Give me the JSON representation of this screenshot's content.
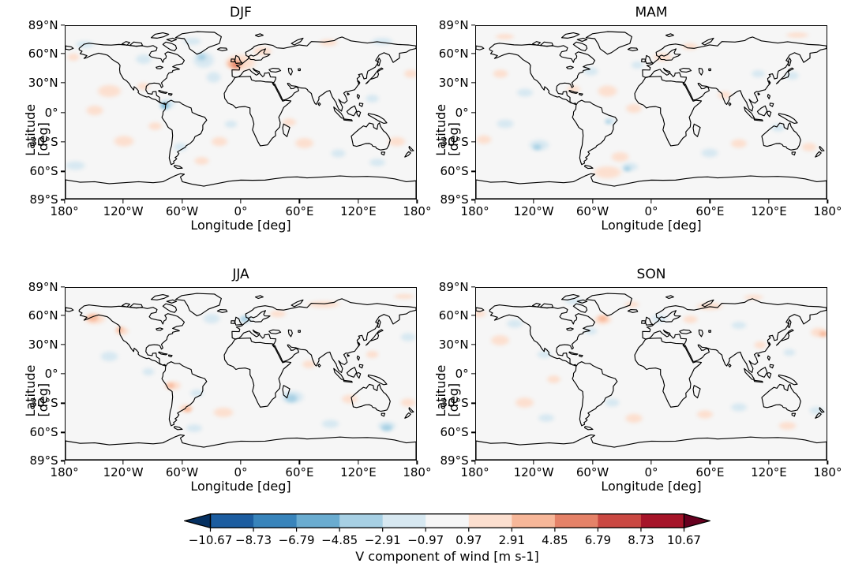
{
  "figure": {
    "background": "#ffffff",
    "ocean_fill": "#f6f6f6",
    "coastline_color": "#000000",
    "blob_colors": {
      "n1": "#d7e8f1",
      "n2": "#a7d0e4",
      "n3": "#6aacd0",
      "p1": "#fcdfcf",
      "p2": "#f7b799",
      "p3": "#e58268"
    },
    "panels": [
      {
        "title": "DJF",
        "xlabel": "Longitude [deg]",
        "ylabel": "Latitude [deg]",
        "xtick_labels": [
          "180°",
          "120°W",
          "60°W",
          "0°",
          "60°E",
          "120°E",
          "180°"
        ],
        "ytick_labels": [
          "89°N",
          "60°N",
          "30°N",
          "0°",
          "30°S",
          "60°S",
          "89°S"
        ],
        "blobs": [
          [
            0,
            52,
            48,
            26,
            "p1"
          ],
          [
            22,
            63,
            30,
            14,
            "p1"
          ],
          [
            -135,
            22,
            38,
            20,
            "p1"
          ],
          [
            -150,
            2,
            28,
            16,
            "p1"
          ],
          [
            -100,
            27,
            20,
            12,
            "p1"
          ],
          [
            -120,
            -30,
            32,
            18,
            "p1"
          ],
          [
            -88,
            -14,
            22,
            13,
            "p1"
          ],
          [
            -22,
            -30,
            26,
            16,
            "p1"
          ],
          [
            -40,
            -50,
            24,
            13,
            "p1"
          ],
          [
            65,
            -32,
            30,
            17,
            "p1"
          ],
          [
            50,
            -10,
            22,
            13,
            "p1"
          ],
          [
            160,
            -30,
            28,
            16,
            "p1"
          ],
          [
            90,
            72,
            30,
            11,
            "p1"
          ],
          [
            175,
            40,
            22,
            14,
            "p1"
          ],
          [
            -172,
            57,
            20,
            12,
            "p1"
          ],
          [
            -38,
            54,
            34,
            26,
            "n1"
          ],
          [
            -28,
            36,
            24,
            18,
            "n1"
          ],
          [
            -50,
            73,
            28,
            12,
            "n1"
          ],
          [
            -75,
            9,
            24,
            16,
            "n1"
          ],
          [
            -100,
            55,
            26,
            16,
            "n1"
          ],
          [
            -160,
            70,
            30,
            12,
            "n1"
          ],
          [
            145,
            73,
            34,
            12,
            "n1"
          ],
          [
            -62,
            -36,
            22,
            14,
            "n1"
          ],
          [
            -170,
            -55,
            32,
            15,
            "n1"
          ],
          [
            100,
            -42,
            24,
            14,
            "n1"
          ],
          [
            140,
            -52,
            26,
            13,
            "n1"
          ],
          [
            135,
            14,
            22,
            13,
            "n1"
          ],
          [
            -10,
            -12,
            20,
            12,
            "n1"
          ],
          [
            -6,
            50,
            26,
            16,
            "p2"
          ],
          [
            -40,
            57,
            14,
            11,
            "n2"
          ],
          [
            -78,
            7,
            16,
            11,
            "n2"
          ],
          [
            -5,
            49,
            12,
            9,
            "p3"
          ],
          [
            -78,
            7,
            9,
            6,
            "n3"
          ]
        ]
      },
      {
        "title": "MAM",
        "xlabel": "Longitude [deg]",
        "ylabel": "Latitude [deg]",
        "xtick_labels": [
          "180°",
          "120°W",
          "60°W",
          "0°",
          "60°E",
          "120°E",
          "180°"
        ],
        "ytick_labels": [
          "89°N",
          "60°N",
          "30°N",
          "0°",
          "30°S",
          "60°S",
          "89°S"
        ],
        "blobs": [
          [
            -45,
            22,
            32,
            18,
            "p1"
          ],
          [
            -18,
            4,
            26,
            15,
            "p1"
          ],
          [
            12,
            57,
            30,
            14,
            "p1"
          ],
          [
            -172,
            -28,
            24,
            14,
            "p1"
          ],
          [
            -80,
            24,
            22,
            12,
            "p1"
          ],
          [
            -155,
            40,
            24,
            14,
            "p1"
          ],
          [
            90,
            -32,
            26,
            15,
            "p1"
          ],
          [
            162,
            -36,
            24,
            14,
            "p1"
          ],
          [
            75,
            18,
            22,
            12,
            "p1"
          ],
          [
            150,
            80,
            36,
            9,
            "p1"
          ],
          [
            -150,
            78,
            30,
            9,
            "p1"
          ],
          [
            40,
            68,
            26,
            11,
            "p1"
          ],
          [
            -45,
            -62,
            44,
            20,
            "p1"
          ],
          [
            -32,
            -46,
            28,
            16,
            "p1"
          ],
          [
            -62,
            42,
            24,
            14,
            "n1"
          ],
          [
            -14,
            49,
            20,
            12,
            "n1"
          ],
          [
            -115,
            -34,
            32,
            18,
            "n1"
          ],
          [
            -22,
            -56,
            26,
            14,
            "n1"
          ],
          [
            -150,
            -12,
            28,
            15,
            "n1"
          ],
          [
            -42,
            -9,
            18,
            11,
            "n1"
          ],
          [
            -130,
            20,
            26,
            14,
            "n1"
          ],
          [
            60,
            -42,
            28,
            15,
            "n1"
          ],
          [
            130,
            -16,
            22,
            13,
            "n1"
          ],
          [
            145,
            38,
            22,
            13,
            "n1"
          ],
          [
            110,
            40,
            22,
            12,
            "n1"
          ],
          [
            -117,
            -36,
            14,
            9,
            "n2"
          ],
          [
            -25,
            -58,
            12,
            8,
            "n2"
          ],
          [
            -44,
            -10,
            9,
            6,
            "n2"
          ]
        ]
      },
      {
        "title": "JJA",
        "xlabel": "Longitude [deg]",
        "ylabel": "Latitude [deg]",
        "xtick_labels": [
          "180°",
          "120°W",
          "60°W",
          "0°",
          "60°E",
          "120°E",
          "180°"
        ],
        "ytick_labels": [
          "89°N",
          "60°N",
          "30°N",
          "0°",
          "30°S",
          "60°S",
          "89°S"
        ],
        "blobs": [
          [
            -150,
            57,
            34,
            17,
            "p1"
          ],
          [
            -122,
            44,
            22,
            13,
            "p1"
          ],
          [
            -70,
            -12,
            26,
            15,
            "p1"
          ],
          [
            38,
            62,
            26,
            12,
            "p1"
          ],
          [
            85,
            72,
            52,
            11,
            "p1"
          ],
          [
            -18,
            -40,
            32,
            17,
            "p1"
          ],
          [
            70,
            10,
            22,
            13,
            "p1"
          ],
          [
            112,
            -26,
            26,
            15,
            "p1"
          ],
          [
            172,
            -30,
            24,
            14,
            "p1"
          ],
          [
            -56,
            -36,
            22,
            13,
            "p1"
          ],
          [
            168,
            80,
            32,
            8,
            "p1"
          ],
          [
            135,
            20,
            20,
            12,
            "p1"
          ],
          [
            -135,
            18,
            28,
            16,
            "n1"
          ],
          [
            -95,
            2,
            20,
            12,
            "n1"
          ],
          [
            -30,
            57,
            28,
            16,
            "n1"
          ],
          [
            5,
            56,
            22,
            13,
            "n1"
          ],
          [
            53,
            -24,
            36,
            20,
            "n1"
          ],
          [
            -48,
            -56,
            26,
            13,
            "n1"
          ],
          [
            92,
            -52,
            28,
            14,
            "n1"
          ],
          [
            150,
            -54,
            30,
            15,
            "n1"
          ],
          [
            172,
            38,
            24,
            14,
            "n1"
          ],
          [
            -45,
            -20,
            22,
            13,
            "n1"
          ],
          [
            -152,
            58,
            18,
            11,
            "p2"
          ],
          [
            -124,
            46,
            11,
            8,
            "p2"
          ],
          [
            -72,
            -12,
            13,
            8,
            "p2"
          ],
          [
            -55,
            -37,
            12,
            8,
            "p2"
          ],
          [
            4,
            57,
            13,
            9,
            "n2"
          ],
          [
            52,
            -25,
            20,
            13,
            "n2"
          ],
          [
            150,
            -56,
            18,
            11,
            "n2"
          ]
        ]
      },
      {
        "title": "SON",
        "xlabel": "Longitude [deg]",
        "ylabel": "Latitude [deg]",
        "xtick_labels": [
          "180°",
          "120°W",
          "60°W",
          "0°",
          "60°E",
          "120°E",
          "180°"
        ],
        "ytick_labels": [
          "89°N",
          "60°N",
          "30°N",
          "0°",
          "30°S",
          "60°S",
          "89°S"
        ],
        "blobs": [
          [
            -50,
            56,
            28,
            16,
            "p1"
          ],
          [
            -155,
            35,
            30,
            17,
            "p1"
          ],
          [
            -100,
            -6,
            22,
            13,
            "p1"
          ],
          [
            40,
            56,
            24,
            13,
            "p1"
          ],
          [
            60,
            70,
            42,
            12,
            "p1"
          ],
          [
            105,
            79,
            32,
            8,
            "p1"
          ],
          [
            172,
            43,
            26,
            15,
            "p1"
          ],
          [
            112,
            30,
            20,
            12,
            "p1"
          ],
          [
            -130,
            -30,
            30,
            17,
            "p1"
          ],
          [
            -18,
            -46,
            28,
            15,
            "p1"
          ],
          [
            55,
            -42,
            26,
            14,
            "p1"
          ],
          [
            140,
            -54,
            28,
            13,
            "p1"
          ],
          [
            -178,
            62,
            26,
            12,
            "p1"
          ],
          [
            -20,
            72,
            24,
            10,
            "p1"
          ],
          [
            -140,
            52,
            26,
            14,
            "n1"
          ],
          [
            -110,
            20,
            24,
            13,
            "n1"
          ],
          [
            -62,
            44,
            20,
            12,
            "n1"
          ],
          [
            8,
            57,
            24,
            13,
            "n1"
          ],
          [
            142,
            22,
            20,
            12,
            "n1"
          ],
          [
            90,
            50,
            24,
            12,
            "n1"
          ],
          [
            -108,
            -46,
            26,
            13,
            "n1"
          ],
          [
            -40,
            -30,
            24,
            14,
            "n1"
          ],
          [
            90,
            -35,
            26,
            14,
            "n1"
          ],
          [
            170,
            -38,
            24,
            13,
            "n1"
          ],
          [
            -80,
            75,
            28,
            10,
            "n1"
          ],
          [
            -50,
            57,
            15,
            10,
            "p2"
          ],
          [
            177,
            41,
            13,
            9,
            "p2"
          ]
        ]
      }
    ],
    "colorbar": {
      "label": "V component of wind [m s-1]",
      "tick_labels": [
        "−10.67",
        "−8.73",
        "−6.79",
        "−4.85",
        "−2.91",
        "−0.97",
        "0.97",
        "2.91",
        "4.85",
        "6.79",
        "8.73",
        "10.67"
      ],
      "segment_colors": [
        "#1c5da0",
        "#3884bb",
        "#6aacd0",
        "#a7d0e4",
        "#d7e8f1",
        "#f6f6f6",
        "#fcdfcf",
        "#f7b799",
        "#e58268",
        "#ca4842",
        "#a61429"
      ],
      "extend_left_color": "#053061",
      "extend_right_color": "#67001f"
    }
  },
  "chart_data": {
    "type": "heatmap",
    "subtype": "filled_contour_world_map",
    "panels": [
      "DJF",
      "MAM",
      "JJA",
      "SON"
    ],
    "variable": "V component of wind",
    "units": "m s-1",
    "colorbar_label": "V component of wind [m s-1]",
    "levels": [
      -10.67,
      -8.73,
      -6.79,
      -4.85,
      -2.91,
      -0.97,
      0.97,
      2.91,
      4.85,
      6.79,
      8.73,
      10.67
    ],
    "colormap": "RdBu_r (diverging blue-white-red)",
    "extend": "both",
    "projection": "PlateCarree (equirectangular), coastlines drawn in black",
    "xlabel": "Longitude [deg]",
    "ylabel": "Latitude [deg]",
    "xlim_deg": [
      -180,
      180
    ],
    "ylim_deg": [
      -89,
      89
    ],
    "xticks_deg": [
      -180,
      -120,
      -60,
      0,
      60,
      120,
      180
    ],
    "yticks_deg": [
      89,
      60,
      30,
      0,
      -30,
      -60,
      -89
    ],
    "grid": false,
    "legend_position": "horizontal colorbar below panels",
    "class_value_map_ms": {
      "n3": -5.8,
      "n2": -3.9,
      "n1": -1.9,
      "p1": 1.9,
      "p2": 3.9,
      "p3": 5.8
    },
    "anomaly_blobs_note": "Approximate anomaly cell centers per season stored in figure.panels[*].blobs as [lon_deg, lat_deg, width_deg, height_deg, intensity_class]."
  }
}
